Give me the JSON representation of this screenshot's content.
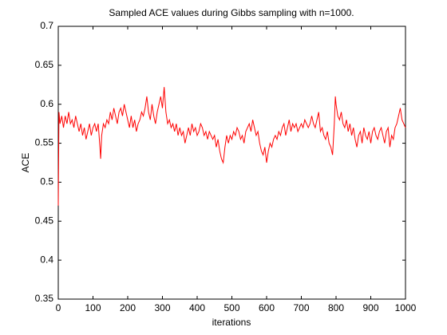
{
  "chart_data": {
    "type": "line",
    "title": "Sampled ACE values during Gibbs sampling with n=1000.",
    "xlabel": "iterations",
    "ylabel": "ACE",
    "color": "#ff0000",
    "x": [
      0,
      2,
      5,
      10,
      15,
      20,
      25,
      30,
      35,
      40,
      45,
      50,
      55,
      60,
      65,
      70,
      75,
      80,
      85,
      90,
      95,
      100,
      105,
      110,
      115,
      120,
      122,
      125,
      130,
      135,
      140,
      145,
      150,
      155,
      160,
      165,
      170,
      175,
      180,
      185,
      190,
      195,
      200,
      205,
      210,
      215,
      220,
      225,
      230,
      235,
      240,
      245,
      250,
      255,
      260,
      265,
      270,
      275,
      280,
      285,
      290,
      295,
      300,
      305,
      310,
      315,
      320,
      325,
      330,
      335,
      340,
      345,
      350,
      355,
      360,
      365,
      370,
      375,
      380,
      385,
      390,
      395,
      400,
      405,
      410,
      415,
      420,
      425,
      430,
      435,
      440,
      445,
      450,
      455,
      460,
      465,
      470,
      475,
      480,
      485,
      490,
      495,
      500,
      505,
      510,
      515,
      520,
      525,
      530,
      535,
      540,
      545,
      550,
      555,
      560,
      565,
      570,
      575,
      580,
      585,
      590,
      595,
      600,
      605,
      610,
      615,
      620,
      625,
      630,
      635,
      640,
      645,
      650,
      655,
      660,
      665,
      670,
      675,
      680,
      685,
      690,
      695,
      700,
      705,
      710,
      715,
      720,
      725,
      730,
      735,
      740,
      745,
      750,
      755,
      760,
      765,
      770,
      775,
      780,
      785,
      790,
      795,
      798,
      800,
      805,
      810,
      815,
      820,
      825,
      830,
      835,
      840,
      845,
      850,
      855,
      860,
      865,
      870,
      875,
      880,
      885,
      890,
      895,
      900,
      905,
      910,
      915,
      920,
      925,
      930,
      935,
      940,
      945,
      950,
      955,
      960,
      965,
      970,
      975,
      980,
      985,
      990,
      995,
      1000
    ],
    "values": [
      0.47,
      0.59,
      0.575,
      0.585,
      0.57,
      0.585,
      0.575,
      0.59,
      0.575,
      0.58,
      0.57,
      0.585,
      0.575,
      0.565,
      0.575,
      0.56,
      0.57,
      0.555,
      0.565,
      0.575,
      0.56,
      0.57,
      0.575,
      0.565,
      0.575,
      0.545,
      0.53,
      0.56,
      0.575,
      0.57,
      0.58,
      0.575,
      0.59,
      0.58,
      0.595,
      0.585,
      0.575,
      0.59,
      0.595,
      0.585,
      0.6,
      0.59,
      0.58,
      0.57,
      0.585,
      0.57,
      0.58,
      0.565,
      0.575,
      0.58,
      0.59,
      0.585,
      0.595,
      0.61,
      0.59,
      0.58,
      0.6,
      0.585,
      0.575,
      0.59,
      0.6,
      0.61,
      0.595,
      0.622,
      0.59,
      0.575,
      0.58,
      0.57,
      0.575,
      0.565,
      0.575,
      0.56,
      0.57,
      0.56,
      0.565,
      0.55,
      0.56,
      0.57,
      0.56,
      0.575,
      0.565,
      0.57,
      0.56,
      0.565,
      0.575,
      0.57,
      0.56,
      0.565,
      0.555,
      0.565,
      0.56,
      0.555,
      0.56,
      0.545,
      0.555,
      0.54,
      0.53,
      0.525,
      0.545,
      0.56,
      0.55,
      0.56,
      0.555,
      0.565,
      0.56,
      0.57,
      0.565,
      0.555,
      0.56,
      0.55,
      0.565,
      0.57,
      0.575,
      0.565,
      0.58,
      0.57,
      0.56,
      0.565,
      0.55,
      0.54,
      0.535,
      0.545,
      0.525,
      0.54,
      0.55,
      0.545,
      0.555,
      0.56,
      0.555,
      0.565,
      0.56,
      0.57,
      0.575,
      0.56,
      0.57,
      0.58,
      0.565,
      0.575,
      0.57,
      0.575,
      0.565,
      0.57,
      0.575,
      0.57,
      0.58,
      0.575,
      0.57,
      0.575,
      0.585,
      0.575,
      0.57,
      0.58,
      0.59,
      0.565,
      0.57,
      0.56,
      0.555,
      0.565,
      0.55,
      0.545,
      0.535,
      0.575,
      0.61,
      0.6,
      0.585,
      0.58,
      0.59,
      0.575,
      0.57,
      0.58,
      0.565,
      0.575,
      0.56,
      0.57,
      0.555,
      0.545,
      0.56,
      0.565,
      0.55,
      0.57,
      0.56,
      0.555,
      0.565,
      0.55,
      0.565,
      0.57,
      0.56,
      0.555,
      0.565,
      0.57,
      0.56,
      0.55,
      0.565,
      0.57,
      0.545,
      0.56,
      0.555,
      0.57,
      0.575,
      0.585,
      0.595,
      0.58,
      0.575,
      0.57
    ],
    "xlim": [
      0,
      1000
    ],
    "xticks": [
      0,
      100,
      200,
      300,
      400,
      500,
      600,
      700,
      800,
      900,
      1000
    ],
    "ylim": [
      0.35,
      0.7
    ],
    "yticks": [
      0.35,
      0.4,
      0.45,
      0.5,
      0.55,
      0.6,
      0.65,
      0.7
    ]
  }
}
